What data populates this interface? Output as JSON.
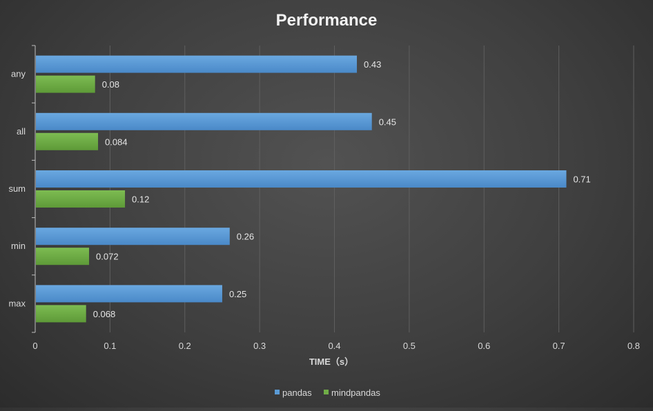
{
  "chart_data": {
    "type": "bar",
    "orientation": "horizontal",
    "title": "Performance",
    "xlabel": "TIME（s）",
    "ylabel": "",
    "xlim": [
      0,
      0.8
    ],
    "xticks": [
      "0",
      "0.1",
      "0.2",
      "0.3",
      "0.4",
      "0.5",
      "0.6",
      "0.7",
      "0.8"
    ],
    "categories": [
      "any",
      "all",
      "sum",
      "min",
      "max"
    ],
    "series": [
      {
        "name": "pandas",
        "color": "#5b9bd5",
        "values": [
          0.43,
          0.45,
          0.71,
          0.26,
          0.25
        ],
        "labels": [
          "0.43",
          "0.45",
          "0.71",
          "0.26",
          "0.25"
        ]
      },
      {
        "name": "mindpandas",
        "color": "#70ad47",
        "values": [
          0.08,
          0.084,
          0.12,
          0.072,
          0.068
        ],
        "labels": [
          "0.08",
          "0.084",
          "0.12",
          "0.072",
          "0.068"
        ]
      }
    ],
    "grid": true,
    "legend": "bottom"
  }
}
